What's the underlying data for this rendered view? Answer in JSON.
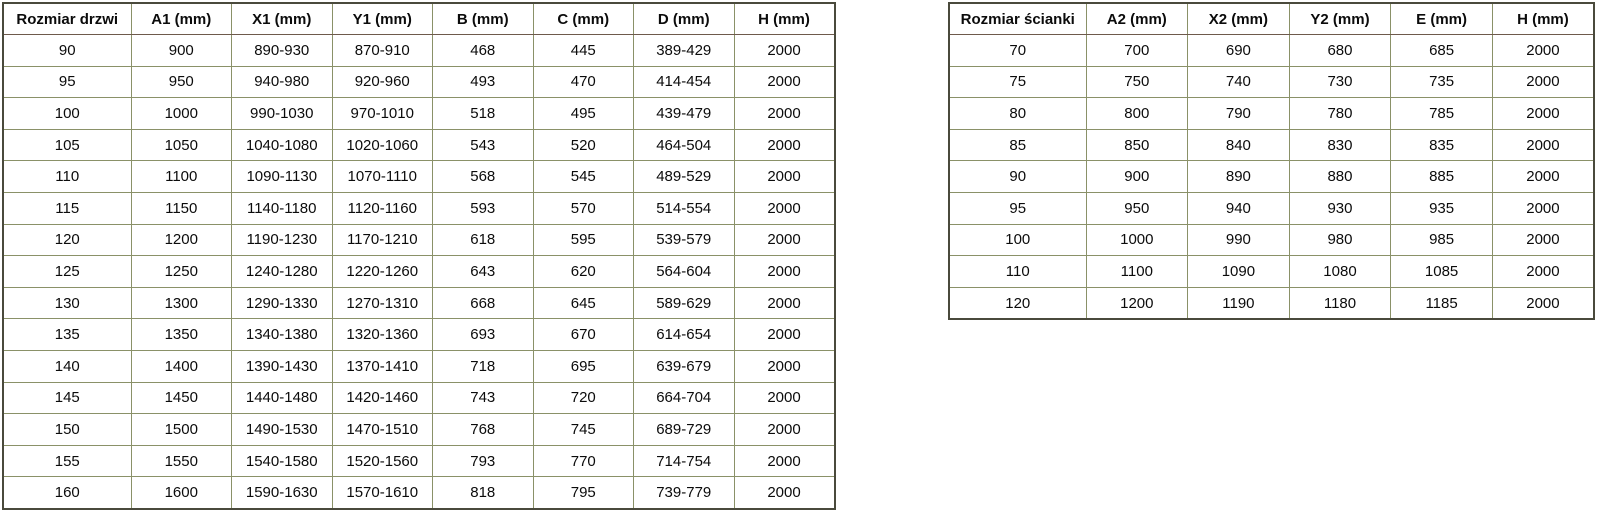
{
  "page": {
    "background": "#ffffff"
  },
  "colors": {
    "grid_border": "#8a9168",
    "outer_border": "#4a4a3c",
    "header_bottom_border": "#6e5a4c",
    "text": "#0b0b0b",
    "cell_background": "#ffffff"
  },
  "door_table": {
    "title": "Rozmiar drzwi",
    "headers": [
      "Rozmiar drzwi",
      "A1 (mm)",
      "X1 (mm)",
      "Y1 (mm)",
      "B (mm)",
      "C (mm)",
      "D (mm)",
      "H (mm)"
    ],
    "rows": [
      [
        "90",
        "900",
        "890-930",
        "870-910",
        "468",
        "445",
        "389-429",
        "2000"
      ],
      [
        "95",
        "950",
        "940-980",
        "920-960",
        "493",
        "470",
        "414-454",
        "2000"
      ],
      [
        "100",
        "1000",
        "990-1030",
        "970-1010",
        "518",
        "495",
        "439-479",
        "2000"
      ],
      [
        "105",
        "1050",
        "1040-1080",
        "1020-1060",
        "543",
        "520",
        "464-504",
        "2000"
      ],
      [
        "110",
        "1100",
        "1090-1130",
        "1070-1110",
        "568",
        "545",
        "489-529",
        "2000"
      ],
      [
        "115",
        "1150",
        "1140-1180",
        "1120-1160",
        "593",
        "570",
        "514-554",
        "2000"
      ],
      [
        "120",
        "1200",
        "1190-1230",
        "1170-1210",
        "618",
        "595",
        "539-579",
        "2000"
      ],
      [
        "125",
        "1250",
        "1240-1280",
        "1220-1260",
        "643",
        "620",
        "564-604",
        "2000"
      ],
      [
        "130",
        "1300",
        "1290-1330",
        "1270-1310",
        "668",
        "645",
        "589-629",
        "2000"
      ],
      [
        "135",
        "1350",
        "1340-1380",
        "1320-1360",
        "693",
        "670",
        "614-654",
        "2000"
      ],
      [
        "140",
        "1400",
        "1390-1430",
        "1370-1410",
        "718",
        "695",
        "639-679",
        "2000"
      ],
      [
        "145",
        "1450",
        "1440-1480",
        "1420-1460",
        "743",
        "720",
        "664-704",
        "2000"
      ],
      [
        "150",
        "1500",
        "1490-1530",
        "1470-1510",
        "768",
        "745",
        "689-729",
        "2000"
      ],
      [
        "155",
        "1550",
        "1540-1580",
        "1520-1560",
        "793",
        "770",
        "714-754",
        "2000"
      ],
      [
        "160",
        "1600",
        "1590-1630",
        "1570-1610",
        "818",
        "795",
        "739-779",
        "2000"
      ]
    ]
  },
  "wall_table": {
    "title": "Rozmiar ścianki",
    "headers": [
      "Rozmiar ścianki",
      "A2 (mm)",
      "X2 (mm)",
      "Y2 (mm)",
      "E (mm)",
      "H (mm)"
    ],
    "rows": [
      [
        "70",
        "700",
        "690",
        "680",
        "685",
        "2000"
      ],
      [
        "75",
        "750",
        "740",
        "730",
        "735",
        "2000"
      ],
      [
        "80",
        "800",
        "790",
        "780",
        "785",
        "2000"
      ],
      [
        "85",
        "850",
        "840",
        "830",
        "835",
        "2000"
      ],
      [
        "90",
        "900",
        "890",
        "880",
        "885",
        "2000"
      ],
      [
        "95",
        "950",
        "940",
        "930",
        "935",
        "2000"
      ],
      [
        "100",
        "1000",
        "990",
        "980",
        "985",
        "2000"
      ],
      [
        "110",
        "1100",
        "1090",
        "1080",
        "1085",
        "2000"
      ],
      [
        "120",
        "1200",
        "1190",
        "1180",
        "1185",
        "2000"
      ]
    ]
  }
}
